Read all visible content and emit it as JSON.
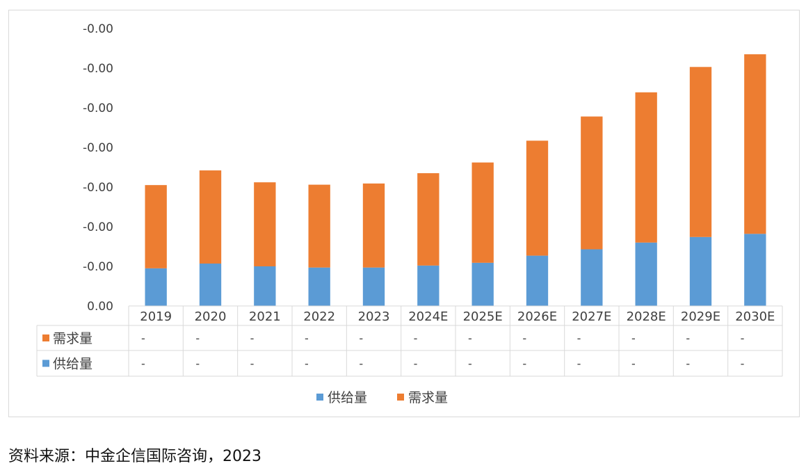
{
  "chart_data": {
    "type": "bar",
    "stacked": true,
    "data_table": true,
    "categories": [
      "2019",
      "2020",
      "2021",
      "2022",
      "2023",
      "2024E",
      "2025E",
      "2026E",
      "2027E",
      "2028E",
      "2029E",
      "2030E"
    ],
    "series": [
      {
        "name": "供给量",
        "color": "#5B9BD5",
        "values": [
          0.95,
          1.07,
          1.0,
          0.97,
          0.97,
          1.02,
          1.09,
          1.27,
          1.43,
          1.6,
          1.74,
          1.82
        ],
        "table_values": [
          "-",
          "-",
          "-",
          "-",
          "-",
          "-",
          "-",
          "-",
          "-",
          "-",
          "-",
          "-"
        ]
      },
      {
        "name": "需求量",
        "color": "#ED7D31",
        "values": [
          2.1,
          2.35,
          2.12,
          2.09,
          2.12,
          2.33,
          2.53,
          2.9,
          3.35,
          3.79,
          4.29,
          4.53
        ],
        "table_values": [
          "-",
          "-",
          "-",
          "-",
          "-",
          "-",
          "-",
          "-",
          "-",
          "-",
          "-",
          "-"
        ]
      }
    ],
    "ylim": [
      0,
      7
    ],
    "ytick_labels": [
      "0.00",
      "-0.00",
      "-0.00",
      "-0.00",
      "-0.00",
      "-0.00",
      "-0.00",
      "-0.00"
    ],
    "legend": [
      "供给量",
      "需求量"
    ],
    "legend_position": "bottom",
    "grid": false
  },
  "source_note": "资料来源：中金企信国际咨询，2023"
}
